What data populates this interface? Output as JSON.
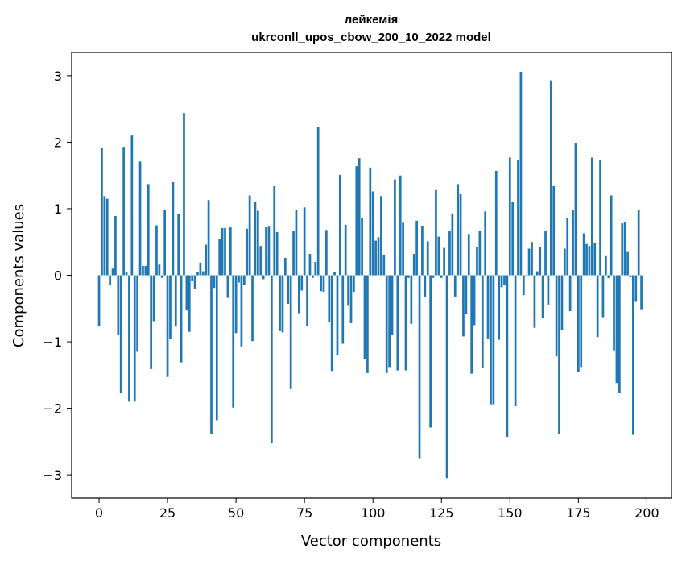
{
  "chart_data": {
    "type": "bar",
    "title": "лейкемія",
    "subtitle": "ukrconll_upos_cbow_200_10_2022 model",
    "xlabel": "Vector components",
    "ylabel": "Components values",
    "xlim": [
      -10,
      209
    ],
    "ylim": [
      -3.35,
      3.35
    ],
    "xticks": [
      0,
      25,
      50,
      75,
      100,
      125,
      150,
      175,
      200
    ],
    "yticks": [
      3,
      2,
      1,
      0,
      -1,
      -2,
      -3
    ],
    "ytick_labels": [
      "3",
      "2",
      "1",
      "0",
      "−1",
      "−2",
      "−3"
    ],
    "bar_color": "#1f77b4",
    "grid": false,
    "series": [
      {
        "values": [
          -0.77,
          1.92,
          1.19,
          1.15,
          -0.15,
          0.1,
          0.89,
          -0.9,
          -1.77,
          1.93,
          0.05,
          -1.9,
          2.1,
          -1.9,
          -1.15,
          1.71,
          0.14,
          0.14,
          1.37,
          -1.41,
          -0.69,
          0.75,
          0.16,
          -0.04,
          0.98,
          -1.53,
          -0.96,
          1.4,
          -0.76,
          0.92,
          -1.31,
          2.44,
          -0.53,
          -0.85,
          -0.09,
          -0.2,
          0.05,
          0.19,
          0.06,
          0.46,
          1.13,
          -2.38,
          -0.19,
          -2.18,
          0.55,
          0.71,
          0.71,
          -0.34,
          0.72,
          -1.99,
          -0.87,
          -0.11,
          -1.07,
          -0.15,
          0.7,
          1.2,
          -0.99,
          1.11,
          0.97,
          0.44,
          -0.06,
          0.72,
          0.73,
          -2.52,
          1.34,
          0.65,
          -0.84,
          -0.86,
          0.26,
          -0.43,
          -1.7,
          0.66,
          0.98,
          -0.57,
          -0.23,
          1.02,
          -0.77,
          0.32,
          -0.04,
          0.2,
          2.23,
          -0.24,
          -0.25,
          0.68,
          -0.71,
          -1.44,
          0.05,
          -1.2,
          1.51,
          -1.03,
          0.76,
          -0.46,
          -0.72,
          -0.25,
          1.64,
          1.76,
          0.86,
          -1.26,
          -1.47,
          1.62,
          1.26,
          0.52,
          0.57,
          1.19,
          0.31,
          -1.47,
          -1.38,
          -0.89,
          1.44,
          -1.43,
          1.5,
          0.79,
          -1.43,
          -0.04,
          -0.73,
          0.32,
          0.82,
          -2.75,
          0.74,
          -0.32,
          0.51,
          -2.29,
          -0.04,
          1.28,
          0.58,
          -0.04,
          0.41,
          -3.05,
          0.67,
          0.93,
          -0.32,
          1.37,
          1.22,
          -0.92,
          -0.58,
          0.62,
          -1.48,
          -0.75,
          0.42,
          0.67,
          -1.39,
          0.96,
          -0.95,
          -1.94,
          -1.94,
          1.57,
          -0.97,
          -0.18,
          -0.15,
          -2.43,
          1.77,
          1.1,
          -1.97,
          1.73,
          3.06,
          -0.3,
          -0.02,
          0.4,
          0.5,
          -0.79,
          0.06,
          0.43,
          -0.64,
          0.67,
          -0.44,
          2.93,
          1.34,
          -1.22,
          -2.38,
          -0.83,
          0.4,
          0.86,
          -0.54,
          0.98,
          1.98,
          -1.45,
          -1.38,
          0.63,
          0.47,
          0.44,
          1.77,
          0.48,
          -0.93,
          1.73,
          -0.63,
          0.3,
          -0.04,
          1.2,
          -1.13,
          -1.62,
          -1.77,
          0.78,
          0.8,
          0.35,
          -0.03,
          -2.4,
          -0.4,
          0.98,
          -0.51
        ]
      }
    ]
  }
}
